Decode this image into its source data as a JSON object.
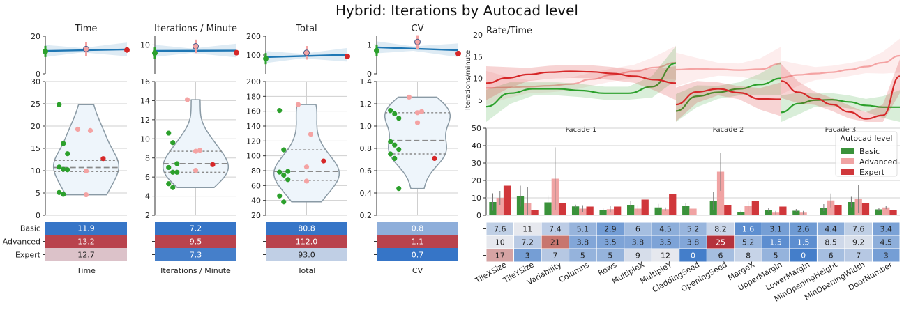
{
  "suptitle": "Hybrid: Iterations by Autocad level",
  "levels": [
    "Basic",
    "Advanced",
    "Expert"
  ],
  "colors": {
    "Basic": "#2ca02c",
    "Advanced": "#f4a3a3",
    "Expert": "#d62728",
    "trend": "#1f77b4",
    "violet_fill": "#eef5fb",
    "violin_edge": "#8a9aa5"
  },
  "chart_data": [
    {
      "type": "scatter",
      "name": "Time",
      "title": "Time",
      "xlabel": "Time",
      "trend_ylim": [
        0,
        20
      ],
      "trend_yticks": [
        "0",
        "20"
      ],
      "trend_points": [
        {
          "level": "Basic",
          "y": 11.9
        },
        {
          "level": "Advanced",
          "y": 13.2
        },
        {
          "level": "Expert",
          "y": 12.7
        }
      ],
      "ylim": [
        0,
        30
      ],
      "yticks": [
        "0",
        "5",
        "10",
        "15",
        "20",
        "25",
        "30"
      ],
      "points": {
        "Basic": [
          24.8,
          16.1,
          13.8,
          10.8,
          10.3,
          10.2,
          5.1,
          4.7
        ],
        "Advanced": [
          19.3,
          19.0,
          9.9,
          4.6
        ],
        "Expert": [
          12.7
        ]
      },
      "quartiles": [
        9.8,
        10.7,
        12.3
      ],
      "table": {
        "Basic": "11.9",
        "Advanced": "13.2",
        "Expert": "12.7"
      }
    },
    {
      "type": "scatter",
      "name": "Iterations / Minute",
      "title": "Iterations / Minute",
      "xlabel": "Iterations / Minute",
      "trend_ylim": [
        0,
        13
      ],
      "trend_yticks": [
        "10"
      ],
      "trend_points": [
        {
          "level": "Basic",
          "y": 7.2
        },
        {
          "level": "Advanced",
          "y": 9.5
        },
        {
          "level": "Expert",
          "y": 7.3
        }
      ],
      "ylim": [
        2,
        16
      ],
      "yticks": [
        "2",
        "4",
        "6",
        "8",
        "10",
        "12",
        "14",
        "16"
      ],
      "points": {
        "Basic": [
          10.6,
          9.6,
          7.4,
          7.0,
          6.5,
          6.5,
          5.3,
          4.9
        ],
        "Advanced": [
          14.1,
          8.8,
          8.7,
          6.7
        ],
        "Expert": [
          7.3
        ]
      },
      "quartiles": [
        6.5,
        7.4,
        8.7
      ],
      "table": {
        "Basic": "7.2",
        "Advanced": "9.5",
        "Expert": "7.3"
      }
    },
    {
      "type": "scatter",
      "name": "Total",
      "title": "Total",
      "xlabel": "Total",
      "trend_ylim": [
        0,
        200
      ],
      "trend_yticks": [
        "100",
        "200"
      ],
      "trend_points": [
        {
          "level": "Basic",
          "y": 80.8
        },
        {
          "level": "Advanced",
          "y": 112.0
        },
        {
          "level": "Expert",
          "y": 93.0
        }
      ],
      "ylim": [
        20,
        200
      ],
      "yticks": [
        "20",
        "40",
        "60",
        "80",
        "100",
        "120",
        "140",
        "160",
        "180",
        "200"
      ],
      "points": {
        "Basic": [
          161,
          108,
          79,
          78,
          74,
          68,
          46,
          38
        ],
        "Advanced": [
          169,
          129,
          85,
          66
        ],
        "Expert": [
          93
        ]
      },
      "quartiles": [
        67,
        79,
        108
      ],
      "table": {
        "Basic": "80.8",
        "Advanced": "112.0",
        "Expert": "93.0"
      }
    },
    {
      "type": "scatter",
      "name": "CV",
      "title": "CV",
      "xlabel": "CV",
      "trend_ylim": [
        0,
        1.3
      ],
      "trend_yticks": [
        "0",
        "1"
      ],
      "trend_points": [
        {
          "level": "Basic",
          "y": 0.8
        },
        {
          "level": "Advanced",
          "y": 1.1
        },
        {
          "level": "Expert",
          "y": 0.7
        }
      ],
      "ylim": [
        0.2,
        1.4
      ],
      "yticks": [
        "0.2",
        "0.4",
        "0.6",
        "0.8",
        "1.0",
        "1.2",
        "1.4"
      ],
      "points": {
        "Basic": [
          1.14,
          1.11,
          1.07,
          0.86,
          0.83,
          0.79,
          0.75,
          0.71,
          0.44
        ],
        "Advanced": [
          1.26,
          1.13,
          1.12,
          1.03
        ],
        "Expert": [
          0.71
        ]
      },
      "quartiles": [
        0.75,
        0.87,
        1.12
      ],
      "table": {
        "Basic": "0.8",
        "Advanced": "1.1",
        "Expert": "0.7"
      }
    },
    {
      "type": "line",
      "name": "Rate/Time",
      "title": "Rate/Time",
      "ylabel": "Iterations/minute",
      "ylim": [
        0,
        20
      ],
      "yticks": [
        "5",
        "10",
        "15",
        "20"
      ],
      "facets": [
        "Facade 1",
        "Facade 2",
        "Facade 3"
      ],
      "series": [
        {
          "level": "Basic",
          "facades": [
            [
              3.5,
              6.6,
              7.6,
              7.6,
              7.2,
              6.6,
              6.6,
              8.1,
              13.5
            ],
            [
              2.5,
              5.9,
              6.8,
              7.6,
              8.6,
              10.0
            ],
            [
              2.2,
              4.2,
              5.0,
              5.1,
              4.6,
              3.8,
              3.4,
              3.4
            ]
          ]
        },
        {
          "level": "Advanced",
          "facades": [
            [
              7.8,
              7.9,
              8.1,
              8.3,
              8.7,
              9.8,
              10.8,
              11.6,
              12.5,
              13.6
            ],
            [
              12.0,
              12.2,
              12.1,
              11.9,
              12.1,
              13.4
            ],
            [
              10.2,
              10.8,
              11.1,
              11.4,
              12.0,
              12.7,
              13.6,
              15.2
            ]
          ]
        },
        {
          "level": "Expert",
          "facades": [
            [
              8.9,
              10.1,
              10.9,
              11.4,
              11.6,
              11.5,
              11.1,
              10.5,
              9.7,
              8.9
            ],
            [
              4.0,
              6.9,
              7.6,
              6.7,
              5.3,
              5.2
            ],
            [
              9.4,
              6.8,
              5.4,
              4.0,
              2.3,
              0.7,
              1.5,
              10.5
            ]
          ]
        }
      ],
      "legend_title": "Autocad level"
    },
    {
      "type": "bar",
      "name": "Parameters",
      "ylim": [
        0,
        50
      ],
      "yticks": [
        "0",
        "10",
        "20",
        "30",
        "40",
        "50"
      ],
      "categories": [
        "TileXSize",
        "TileYSize",
        "Variability",
        "Columns",
        "Rows",
        "MultipleX",
        "MultipleY",
        "CladdingSeed",
        "OpeningSeed",
        "MargeX",
        "UpperMargin",
        "LowerMargin",
        "MinOpeningHeight",
        "MinOpeningWidth",
        "DoorNumber"
      ],
      "series": [
        {
          "name": "Basic",
          "values": [
            7.6,
            11,
            7.4,
            5.1,
            2.9,
            6,
            4.5,
            5.2,
            8.2,
            1.6,
            3.1,
            2.6,
            4.4,
            7.6,
            3.4
          ]
        },
        {
          "name": "Advanced",
          "values": [
            10,
            7.2,
            21,
            3.8,
            3.5,
            3.8,
            3.5,
            3.8,
            25,
            5.2,
            1.5,
            1.5,
            8.5,
            9.2,
            4.5
          ]
        },
        {
          "name": "Expert",
          "values": [
            17,
            3,
            7,
            5,
            5,
            9,
            12,
            0,
            6,
            8,
            5,
            0,
            6,
            7,
            3
          ]
        }
      ],
      "errors": {
        "Basic": [
          5,
          6,
          4,
          1,
          1,
          2,
          2,
          2,
          5,
          1,
          1,
          1,
          2,
          3,
          1
        ],
        "Advanced": [
          4,
          9,
          18,
          2,
          2,
          2,
          1,
          2,
          11,
          3,
          1,
          1,
          4,
          8,
          1
        ]
      },
      "table": {
        "Basic": [
          "7.6",
          "11",
          "7.4",
          "5.1",
          "2.9",
          "6",
          "4.5",
          "5.2",
          "8.2",
          "1.6",
          "3.1",
          "2.6",
          "4.4",
          "7.6",
          "3.4"
        ],
        "Advanced": [
          "10",
          "7.2",
          "21",
          "3.8",
          "3.5",
          "3.8",
          "3.5",
          "3.8",
          "25",
          "5.2",
          "1.5",
          "1.5",
          "8.5",
          "9.2",
          "4.5"
        ],
        "Expert": [
          "17",
          "3",
          "7",
          "5",
          "5",
          "9",
          "12",
          "0",
          "6",
          "8",
          "5",
          "0",
          "6",
          "7",
          "3"
        ]
      }
    }
  ]
}
